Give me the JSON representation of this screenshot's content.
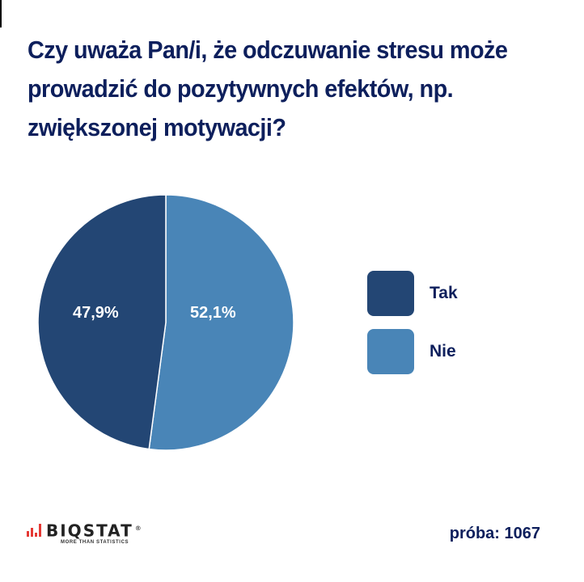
{
  "title": "Czy uważa Pan/i, że odczuwanie stresu może prowadzić do pozytywnych efektów, np. zwiększonej motywacji?",
  "chart_data": {
    "type": "pie",
    "title": "Czy uważa Pan/i, że odczuwanie stresu może prowadzić do pozytywnych efektów, np. zwiększonej motywacji?",
    "categories": [
      "Tak",
      "Nie"
    ],
    "values": [
      47.9,
      52.1
    ],
    "labels": [
      "47,9%",
      "52,1%"
    ],
    "colors": [
      "#234674",
      "#4985b7"
    ],
    "legend_position": "right",
    "start_angle": "12 o'clock",
    "direction": "clockwise starting with Nie"
  },
  "legend": {
    "items": [
      {
        "label": "Tak",
        "color": "#234674"
      },
      {
        "label": "Nie",
        "color": "#4985b7"
      }
    ]
  },
  "footer": {
    "logo_name": "BIQSTAT",
    "logo_reg": "®",
    "logo_tagline": "MORE THAN STATISTICS",
    "sample": "próba: 1067"
  },
  "colors": {
    "title": "#0d1f5c",
    "logo_bars": "#e53935"
  }
}
